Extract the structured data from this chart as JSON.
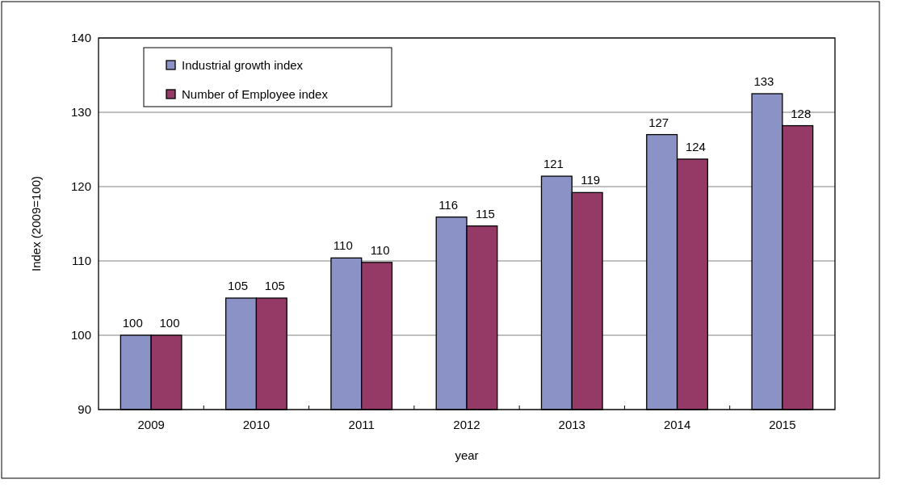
{
  "chart_data": {
    "type": "bar",
    "xlabel": "year",
    "ylabel": "Index (2009=100)",
    "categories": [
      "2009",
      "2010",
      "2011",
      "2012",
      "2013",
      "2014",
      "2015"
    ],
    "series": [
      {
        "name": "Industrial growth index",
        "color": "#8b93c6",
        "values": [
          100,
          105,
          110.4,
          115.9,
          121.4,
          127,
          132.5
        ],
        "value_labels": [
          "100",
          "105",
          "110",
          "116",
          "121",
          "127",
          "133"
        ]
      },
      {
        "name": "Number of Employee index",
        "color": "#953a66",
        "values": [
          100,
          105,
          109.8,
          114.7,
          119.2,
          123.7,
          128.2
        ],
        "value_labels": [
          "100",
          "105",
          "110",
          "115",
          "119",
          "124",
          "128"
        ]
      }
    ],
    "ylim": [
      90,
      140
    ],
    "yticks": [
      90,
      100,
      110,
      120,
      130,
      140
    ],
    "grid": "y",
    "legend": "top left"
  }
}
